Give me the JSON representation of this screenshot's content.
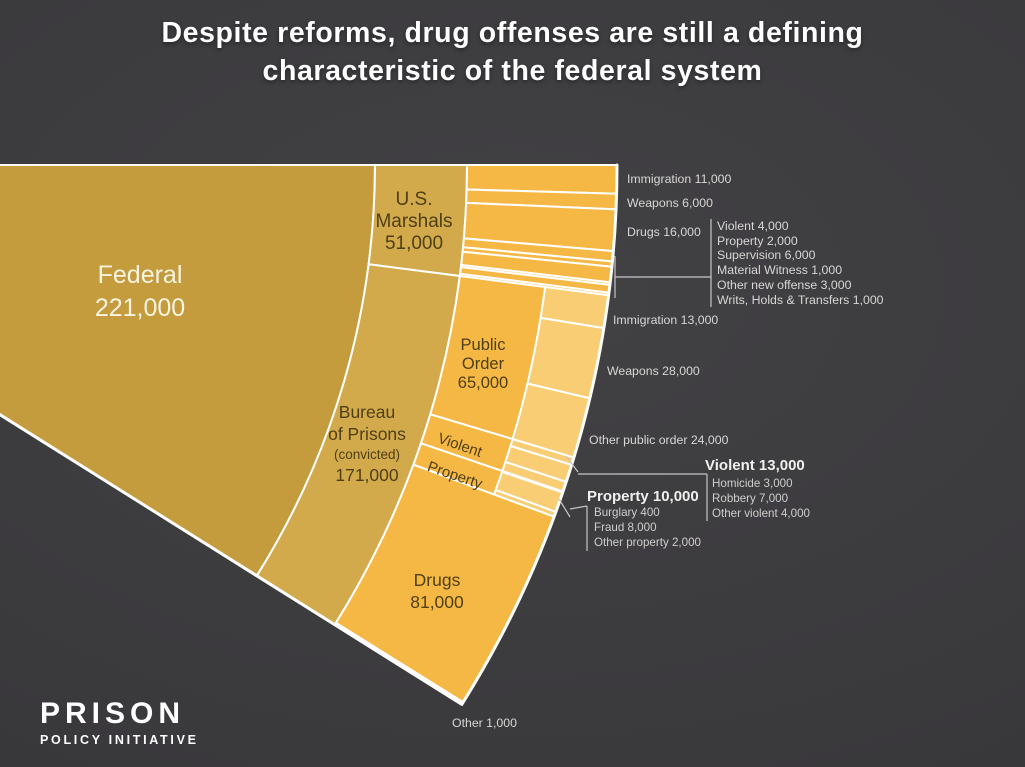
{
  "title": {
    "lines": [
      "Despite reforms, drug offenses are still a defining",
      "characteristic of the federal system"
    ]
  },
  "logo": {
    "name": "PRISON",
    "tagline": "POLICY INITIATIVE"
  },
  "colors": {
    "background": "#3a393c",
    "federal": "#c49c3e",
    "agency": "#d2aa4c",
    "offense": "#f6b845",
    "suboffense": "#f9cd74",
    "separator": "#ffffff",
    "label_dark": "#4f3f14",
    "label_light": "#f9f4e1",
    "callout": "#d8d7d5"
  },
  "wedge_labels": {
    "federal": [
      "Federal",
      "221,000"
    ],
    "us_marshals": [
      "U.S.",
      "Marshals",
      "51,000"
    ],
    "bop": [
      "Bureau",
      "of Prisons",
      "(convicted)",
      "171,000"
    ],
    "public_order": [
      "Public",
      "Order",
      "65,000"
    ],
    "violent": "Violent",
    "property": "Property",
    "drugs": [
      "Drugs",
      "81,000"
    ]
  },
  "callouts": {
    "usm": {
      "immigration": "Immigration 11,000",
      "weapons": "Weapons 6,000",
      "drugs": "Drugs 16,000",
      "detained": [
        "Violent 4,000",
        "Property 2,000",
        "Supervision 6,000",
        "Material Witness 1,000",
        "Other new offense 3,000",
        "Writs, Holds & Transfers 1,000"
      ]
    },
    "bop": {
      "immigration": "Immigration 13,000",
      "weapons": "Weapons 28,000",
      "other_public_order": "Other public order 24,000",
      "violent_header": "Violent 13,000",
      "violent_items": [
        "Homicide 3,000",
        "Robbery 7,000",
        "Other violent 4,000"
      ],
      "property_header": "Property 10,000",
      "property_items": [
        "Burglary 400",
        "Fraud 8,000",
        "Other property 2,000"
      ],
      "other": "Other 1,000"
    }
  },
  "chart_data": {
    "type": "sunburst-fan",
    "title": "Despite reforms, drug offenses are still a defining characteristic of the federal system",
    "root": {
      "label": "Federal",
      "value": 221000
    },
    "agencies": [
      {
        "label": "U.S. Marshals",
        "value": 51000,
        "children": [
          {
            "label": "Immigration",
            "value": 11000
          },
          {
            "label": "Weapons",
            "value": 6000
          },
          {
            "label": "Drugs",
            "value": 16000
          },
          {
            "label": "Violent",
            "value": 4000
          },
          {
            "label": "Property",
            "value": 2000
          },
          {
            "label": "Supervision",
            "value": 6000
          },
          {
            "label": "Material Witness",
            "value": 1000
          },
          {
            "label": "Other new offense",
            "value": 3000
          },
          {
            "label": "Writs, Holds & Transfers",
            "value": 1000
          }
        ]
      },
      {
        "label": "Bureau of Prisons (convicted)",
        "value": 171000,
        "children": [
          {
            "label": "Public Order",
            "value": 65000,
            "children": [
              {
                "label": "Immigration",
                "value": 13000
              },
              {
                "label": "Weapons",
                "value": 28000
              },
              {
                "label": "Other public order",
                "value": 24000
              }
            ]
          },
          {
            "label": "Violent",
            "value": 13000,
            "children": [
              {
                "label": "Homicide",
                "value": 3000
              },
              {
                "label": "Robbery",
                "value": 7000
              },
              {
                "label": "Other violent",
                "value": 4000
              }
            ]
          },
          {
            "label": "Property",
            "value": 10000,
            "children": [
              {
                "label": "Burglary",
                "value": 400
              },
              {
                "label": "Fraud",
                "value": 8000
              },
              {
                "label": "Other property",
                "value": 2000
              }
            ]
          },
          {
            "label": "Drugs",
            "value": 81000
          },
          {
            "label": "Other",
            "value": 1000
          }
        ]
      }
    ]
  }
}
